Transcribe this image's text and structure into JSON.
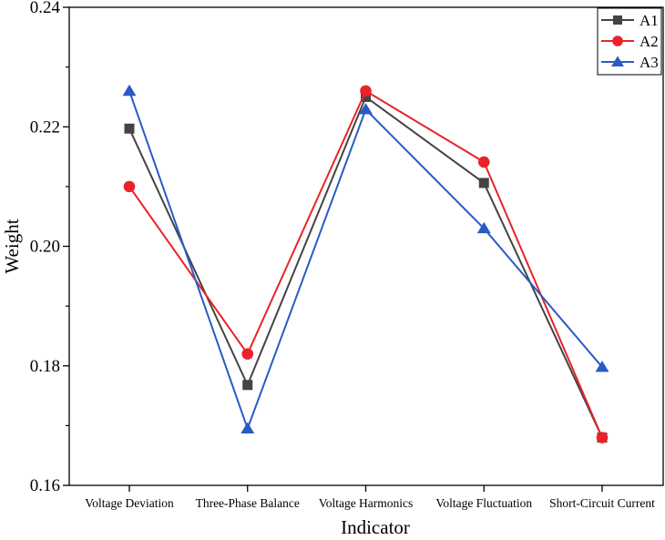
{
  "chart_data": {
    "type": "line",
    "xlabel": "Indicator",
    "ylabel": "Weight",
    "categories": [
      "Voltage Deviation",
      "Three-Phase Balance",
      "Voltage Harmonics",
      "Voltage Fluctuation",
      "Short-Circuit Current"
    ],
    "ylim": [
      0.16,
      0.24
    ],
    "yticks": [
      "0.16",
      "0.18",
      "0.20",
      "0.22",
      "0.24"
    ],
    "grid": false,
    "legend_position": "top-right",
    "series": [
      {
        "name": "A1",
        "marker": "square",
        "color": "#444444",
        "values": [
          0.2197,
          0.1768,
          0.225,
          0.2106,
          0.168
        ]
      },
      {
        "name": "A2",
        "marker": "circle",
        "color": "#e8242a",
        "values": [
          0.21,
          0.182,
          0.226,
          0.2141,
          0.168
        ]
      },
      {
        "name": "A3",
        "marker": "triangle",
        "color": "#2a5bc4",
        "values": [
          0.226,
          0.1695,
          0.2229,
          0.203,
          0.1798
        ]
      }
    ]
  }
}
